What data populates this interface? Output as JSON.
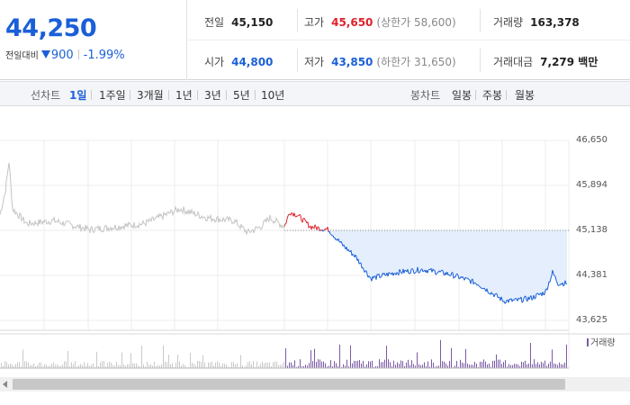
{
  "quote": {
    "price": "44,250",
    "change_label": "전일대비",
    "change_value": "900",
    "change_pct": "-1.99%",
    "prev_close_label": "전일",
    "prev_close": "45,150",
    "high_label": "고가",
    "high": "45,650",
    "upper_limit": "(상한가 58,600)",
    "volume_label": "거래량",
    "volume": "163,378",
    "open_label": "시가",
    "open": "44,800",
    "low_label": "저가",
    "low": "43,850",
    "lower_limit": "(하한가 31,650)",
    "turnover_label": "거래대금",
    "turnover": "7,279 백만"
  },
  "toolbar": {
    "line_chart_label": "선차트",
    "periods": [
      "1일",
      "1주일",
      "3개월",
      "1년",
      "3년",
      "5년",
      "10년"
    ],
    "active_period": "1일",
    "candle_chart_label": "봉차트",
    "candle_periods": [
      "일봉",
      "주봉",
      "월봉"
    ]
  },
  "chart_data": {
    "type": "line",
    "y_ticks": [
      "46,650",
      "45,894",
      "45,138",
      "44,381",
      "43,625"
    ],
    "ylim": [
      43625,
      46650
    ],
    "reference_line": 45138,
    "volume_legend": "거래량",
    "grid": true
  },
  "colors": {
    "up": "#e0202c",
    "down": "#1a5fd8",
    "prev_day_line": "#c4c4c4",
    "fill": "#e4eefc",
    "volume_bar": "#7b5aa6"
  }
}
